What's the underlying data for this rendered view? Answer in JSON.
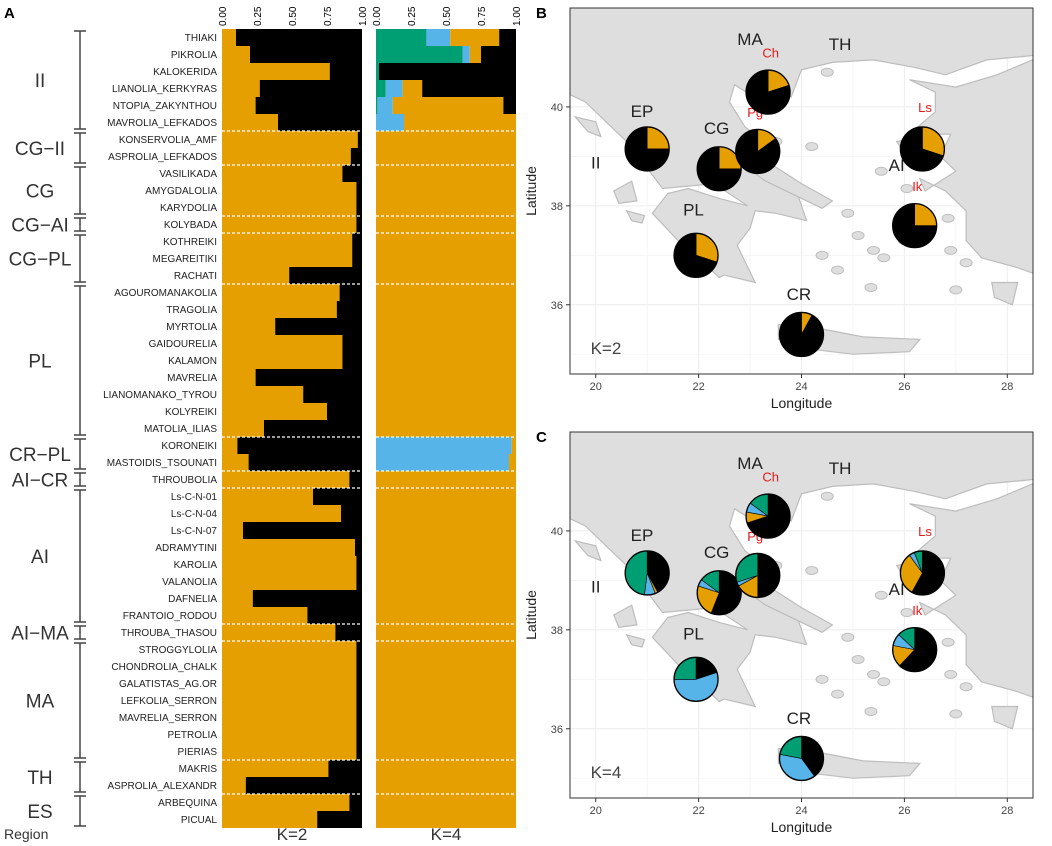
{
  "chart_data": {
    "panels": [
      "A",
      "B",
      "C"
    ],
    "colors": {
      "orange": "#E69F00",
      "black": "#000000",
      "green": "#009E73",
      "blue": "#56B4E9",
      "land": "#DEDEDE",
      "border": "#BDBDBD",
      "red": "#E41A1C"
    },
    "panelA": {
      "type": "stacked-bar-horizontal",
      "tick_labels": [
        "0.00",
        "0.25",
        "0.50",
        "0.75",
        "1.00"
      ],
      "k2_label": "K=2",
      "k4_label": "K=4",
      "region_axis_label": "Region",
      "cultivars": [
        "THIAKI",
        "PIKROLIA",
        "KALOKERIDA",
        "LIANOLIA_KERKYRAS",
        "NTOPIA_ZAKYNTHOU",
        "MAVROLIA_LEFKADOS",
        "KONSERVOLIA_AMF",
        "ASPROLIA_LEFKADOS",
        "VASILIKADA",
        "AMYGDALOLIA",
        "KARYDOLIA",
        "KOLYBADA",
        "KOTHREIKI",
        "MEGAREITIKI",
        "RACHATI",
        "AGOUROMANAKOLIA",
        "TRAGOLIA",
        "MYRTOLIA",
        "GAIDOURELIA",
        "KALAMON",
        "MAVRELIA",
        "LIANOMANAKO_TYROU",
        "KOLYREIKI",
        "MATOLIA_ILIAS",
        "KORONEIKI",
        "MASTOIDIS_TSOUNATI",
        "THROUBOLIA",
        "Ls-C-N-01",
        "Ls-C-N-04",
        "Ls-C-N-07",
        "ADRAMYTINI",
        "KAROLIA",
        "VALANOLIA",
        "DAFNELIA",
        "FRANTOIO_RODOU",
        "THROUBA_THASOU",
        "STROGGYLOLIA",
        "CHONDROLIA_CHALK",
        "GALATISTAS_AG.OR",
        "LEFKOLIA_SERRON",
        "MAVRELIA_SERRON",
        "PETROLIA",
        "PIERIAS",
        "MAKRIS",
        "ASPROLIA_ALEXANDR",
        "ARBEQUINA",
        "PICUAL"
      ],
      "regions": [
        {
          "name": "II",
          "count": 6
        },
        {
          "name": "CG−II",
          "count": 2
        },
        {
          "name": "CG",
          "count": 3
        },
        {
          "name": "CG−AI",
          "count": 1
        },
        {
          "name": "CG−PL",
          "count": 3
        },
        {
          "name": "PL",
          "count": 9
        },
        {
          "name": "CR−PL",
          "count": 2
        },
        {
          "name": "AI−CR",
          "count": 1
        },
        {
          "name": "AI",
          "count": 8
        },
        {
          "name": "AI−MA",
          "count": 1
        },
        {
          "name": "MA",
          "count": 7
        },
        {
          "name": "TH",
          "count": 2
        },
        {
          "name": "ES",
          "count": 2
        }
      ],
      "k2_orange": [
        0.1,
        0.2,
        0.77,
        0.27,
        0.24,
        0.4,
        0.97,
        0.92,
        0.86,
        0.96,
        0.96,
        0.96,
        0.93,
        0.93,
        0.48,
        0.84,
        0.82,
        0.38,
        0.86,
        0.86,
        0.24,
        0.58,
        0.75,
        0.3,
        0.11,
        0.19,
        0.91,
        0.65,
        0.85,
        0.15,
        0.95,
        0.96,
        0.96,
        0.22,
        0.61,
        0.81,
        0.96,
        0.96,
        0.96,
        0.96,
        0.96,
        0.96,
        0.96,
        0.76,
        0.17,
        0.91,
        0.68
      ],
      "k4": [
        [
          0.36,
          0.17,
          0.12,
          0.35
        ],
        [
          0.62,
          0.05,
          0.25,
          0.08
        ],
        [
          0.02,
          0.0,
          0.98,
          0.0
        ],
        [
          0.07,
          0.12,
          0.67,
          0.14
        ],
        [
          0.01,
          0.11,
          0.09,
          0.79
        ],
        [
          0.0,
          0.2,
          0.0,
          0.8
        ],
        [
          0.0,
          0.0,
          0.0,
          1.0
        ],
        [
          0.0,
          0.0,
          0.0,
          1.0
        ],
        [
          0.0,
          0.0,
          0.0,
          1.0
        ],
        [
          0.0,
          0.0,
          0.0,
          1.0
        ],
        [
          0.0,
          0.0,
          0.0,
          1.0
        ],
        [
          0.0,
          0.0,
          0.0,
          1.0
        ],
        [
          0.0,
          0.0,
          0.0,
          1.0
        ],
        [
          0.0,
          0.0,
          0.0,
          1.0
        ],
        [
          0.0,
          0.0,
          0.0,
          1.0
        ],
        [
          0.0,
          0.0,
          0.0,
          1.0
        ],
        [
          0.0,
          0.0,
          0.0,
          1.0
        ],
        [
          0.0,
          0.0,
          0.0,
          1.0
        ],
        [
          0.0,
          0.0,
          0.0,
          1.0
        ],
        [
          0.0,
          0.0,
          0.0,
          1.0
        ],
        [
          0.0,
          0.0,
          0.0,
          1.0
        ],
        [
          0.0,
          0.0,
          0.0,
          1.0
        ],
        [
          0.0,
          0.0,
          0.0,
          1.0
        ],
        [
          0.0,
          0.0,
          0.0,
          1.0
        ],
        [
          0.0,
          0.97,
          0.0,
          0.03
        ],
        [
          0.0,
          0.95,
          0.0,
          0.05
        ],
        [
          0.0,
          0.0,
          0.0,
          1.0
        ],
        [
          0.0,
          0.0,
          0.0,
          1.0
        ],
        [
          0.0,
          0.0,
          0.0,
          1.0
        ],
        [
          0.0,
          0.0,
          0.0,
          1.0
        ],
        [
          0.0,
          0.0,
          0.0,
          1.0
        ],
        [
          0.0,
          0.0,
          0.0,
          1.0
        ],
        [
          0.0,
          0.0,
          0.0,
          1.0
        ],
        [
          0.0,
          0.0,
          0.0,
          1.0
        ],
        [
          0.0,
          0.0,
          0.0,
          1.0
        ],
        [
          0.0,
          0.0,
          0.0,
          1.0
        ],
        [
          0.0,
          0.0,
          0.0,
          1.0
        ],
        [
          0.0,
          0.0,
          0.0,
          1.0
        ],
        [
          0.0,
          0.0,
          0.0,
          1.0
        ],
        [
          0.0,
          0.0,
          0.0,
          1.0
        ],
        [
          0.0,
          0.0,
          0.0,
          1.0
        ],
        [
          0.0,
          0.0,
          0.0,
          1.0
        ],
        [
          0.0,
          0.0,
          0.0,
          1.0
        ],
        [
          0.0,
          0.0,
          0.0,
          1.0
        ],
        [
          0.0,
          0.0,
          0.0,
          1.0
        ],
        [
          0.0,
          0.0,
          0.0,
          1.0
        ],
        [
          0.0,
          0.0,
          0.0,
          1.0
        ]
      ]
    },
    "maps": {
      "xlabel": "Longitude",
      "ylabel": "Latitude",
      "xlim": [
        19.5,
        28.5
      ],
      "ylim": [
        34.6,
        42.0
      ],
      "xticks": [
        20,
        22,
        24,
        26,
        28
      ],
      "yticks": [
        36,
        38,
        40
      ],
      "region_labels": [
        {
          "label": "EP",
          "lon": 20.9,
          "lat": 39.8
        },
        {
          "label": "MA",
          "lon": 23.0,
          "lat": 41.25
        },
        {
          "label": "TH",
          "lon": 24.75,
          "lat": 41.15
        },
        {
          "label": "CG",
          "lon": 22.35,
          "lat": 39.45
        },
        {
          "label": "AI",
          "lon": 25.85,
          "lat": 38.7
        },
        {
          "label": "II",
          "lon": 20.0,
          "lat": 38.75
        },
        {
          "label": "PL",
          "lon": 21.9,
          "lat": 37.8
        },
        {
          "label": "CR",
          "lon": 23.95,
          "lat": 36.1
        }
      ],
      "site_labels": [
        {
          "label": "Ch",
          "lon": 23.4,
          "lat": 41.0
        },
        {
          "label": "Pg",
          "lon": 23.1,
          "lat": 39.8
        },
        {
          "label": "Ls",
          "lon": 26.4,
          "lat": 39.9
        },
        {
          "label": "Ik",
          "lon": 26.25,
          "lat": 38.3
        }
      ],
      "pies": [
        {
          "label": "EP",
          "lon": 21.0,
          "lat": 39.15
        },
        {
          "label": "MA",
          "lon": 23.35,
          "lat": 40.3
        },
        {
          "label": "CG",
          "lon": 22.4,
          "lat": 38.75
        },
        {
          "label": "Pg",
          "lon": 23.15,
          "lat": 39.1
        },
        {
          "label": "Ls",
          "lon": 26.35,
          "lat": 39.15
        },
        {
          "label": "Ik",
          "lon": 26.2,
          "lat": 37.6
        },
        {
          "label": "PL",
          "lon": 21.95,
          "lat": 37.0
        },
        {
          "label": "CR",
          "lon": 24.0,
          "lat": 35.4
        }
      ],
      "panelB": {
        "k_label": "K=2",
        "shares": [
          {
            "orange": 0.25,
            "black": 0.75
          },
          {
            "orange": 0.2,
            "black": 0.8
          },
          {
            "orange": 0.25,
            "black": 0.75
          },
          {
            "orange": 0.15,
            "black": 0.85
          },
          {
            "orange": 0.3,
            "black": 0.7
          },
          {
            "orange": 0.25,
            "black": 0.75
          },
          {
            "orange": 0.3,
            "black": 0.7
          },
          {
            "orange": 0.08,
            "black": 0.92
          }
        ]
      },
      "panelC": {
        "k_label": "K=4",
        "shares": [
          {
            "black": 0.42,
            "orange": 0.02,
            "blue": 0.08,
            "green": 0.48
          },
          {
            "black": 0.7,
            "orange": 0.08,
            "blue": 0.07,
            "green": 0.15
          },
          {
            "black": 0.56,
            "orange": 0.24,
            "blue": 0.05,
            "green": 0.15
          },
          {
            "black": 0.5,
            "orange": 0.17,
            "blue": 0.03,
            "green": 0.3
          },
          {
            "black": 0.58,
            "orange": 0.32,
            "blue": 0.04,
            "green": 0.06
          },
          {
            "black": 0.62,
            "orange": 0.16,
            "blue": 0.09,
            "green": 0.13
          },
          {
            "black": 0.2,
            "orange": 0.0,
            "blue": 0.55,
            "green": 0.25
          },
          {
            "black": 0.4,
            "orange": 0.0,
            "blue": 0.38,
            "green": 0.22
          }
        ]
      }
    }
  }
}
